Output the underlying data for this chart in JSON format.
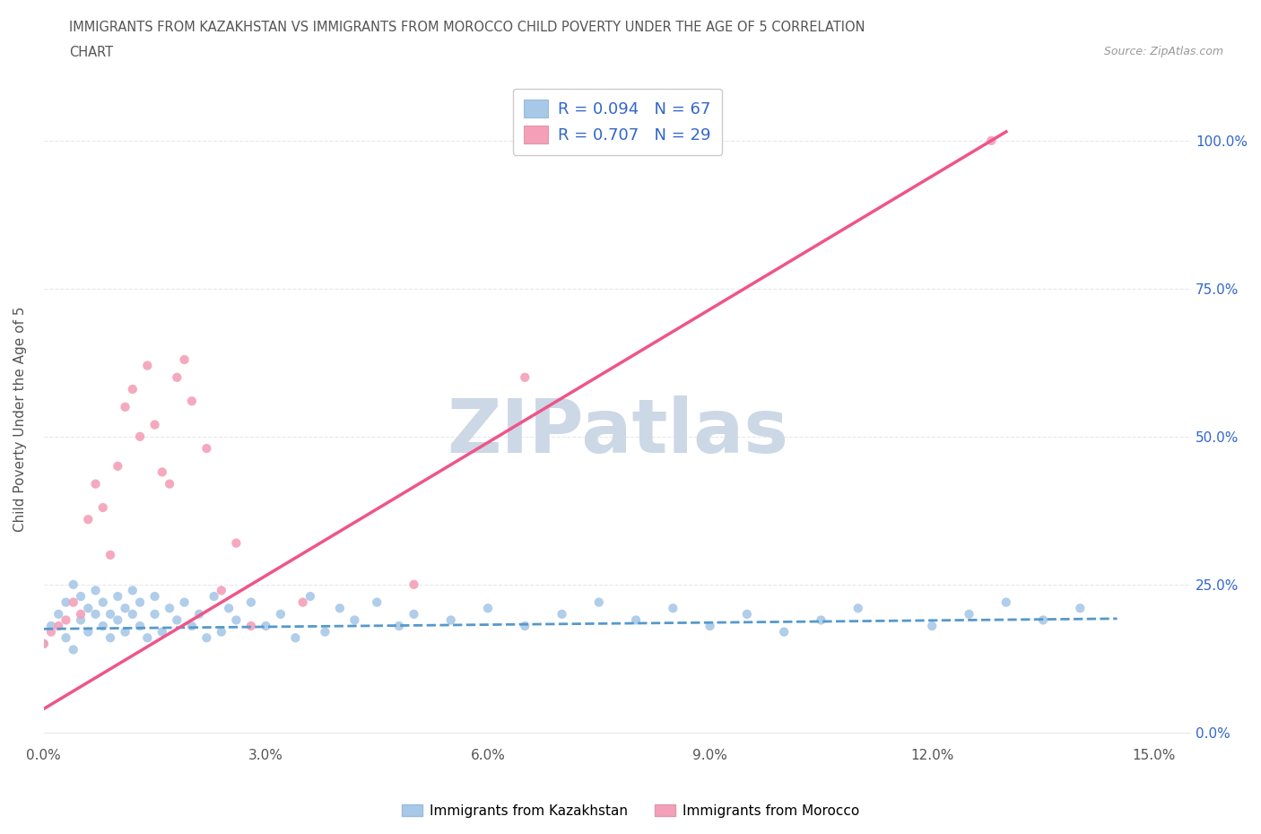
{
  "title_line1": "IMMIGRANTS FROM KAZAKHSTAN VS IMMIGRANTS FROM MOROCCO CHILD POVERTY UNDER THE AGE OF 5 CORRELATION",
  "title_line2": "CHART",
  "source_text": "Source: ZipAtlas.com",
  "ylabel": "Child Poverty Under the Age of 5",
  "xlim": [
    0.0,
    0.155
  ],
  "ylim": [
    -0.02,
    1.08
  ],
  "ytick_vals": [
    0.0,
    0.25,
    0.5,
    0.75,
    1.0
  ],
  "ytick_labels": [
    "0.0%",
    "25.0%",
    "50.0%",
    "75.0%",
    "100.0%"
  ],
  "xtick_vals": [
    0.0,
    0.03,
    0.06,
    0.09,
    0.12,
    0.15
  ],
  "xtick_labels": [
    "0.0%",
    "3.0%",
    "6.0%",
    "9.0%",
    "12.0%",
    "15.0%"
  ],
  "kazakhstan_R": "0.094",
  "kazakhstan_N": "67",
  "morocco_R": "0.707",
  "morocco_N": "29",
  "kazakhstan_color": "#a8c8e8",
  "morocco_color": "#f4a0b8",
  "kazakhstan_line_color": "#5599cc",
  "morocco_line_color": "#ee5588",
  "background_color": "#ffffff",
  "watermark_text": "ZIPatlas",
  "watermark_color": "#ccd8e5",
  "grid_color": "#e8e8e8",
  "legend_text_color": "#3366cc",
  "title_color": "#555555",
  "source_color": "#999999",
  "kaz_scatter_x": [
    0.0,
    0.001,
    0.002,
    0.003,
    0.003,
    0.004,
    0.004,
    0.005,
    0.005,
    0.006,
    0.006,
    0.007,
    0.007,
    0.008,
    0.008,
    0.009,
    0.009,
    0.01,
    0.01,
    0.011,
    0.011,
    0.012,
    0.012,
    0.013,
    0.013,
    0.014,
    0.015,
    0.015,
    0.016,
    0.017,
    0.018,
    0.019,
    0.02,
    0.021,
    0.022,
    0.023,
    0.024,
    0.025,
    0.026,
    0.028,
    0.03,
    0.032,
    0.034,
    0.036,
    0.038,
    0.04,
    0.042,
    0.045,
    0.048,
    0.05,
    0.055,
    0.06,
    0.065,
    0.07,
    0.075,
    0.08,
    0.085,
    0.09,
    0.095,
    0.1,
    0.105,
    0.11,
    0.12,
    0.125,
    0.13,
    0.135,
    0.14
  ],
  "kaz_scatter_y": [
    0.15,
    0.18,
    0.2,
    0.22,
    0.16,
    0.25,
    0.14,
    0.19,
    0.23,
    0.17,
    0.21,
    0.2,
    0.24,
    0.18,
    0.22,
    0.16,
    0.2,
    0.19,
    0.23,
    0.17,
    0.21,
    0.2,
    0.24,
    0.18,
    0.22,
    0.16,
    0.2,
    0.23,
    0.17,
    0.21,
    0.19,
    0.22,
    0.18,
    0.2,
    0.16,
    0.23,
    0.17,
    0.21,
    0.19,
    0.22,
    0.18,
    0.2,
    0.16,
    0.23,
    0.17,
    0.21,
    0.19,
    0.22,
    0.18,
    0.2,
    0.19,
    0.21,
    0.18,
    0.2,
    0.22,
    0.19,
    0.21,
    0.18,
    0.2,
    0.17,
    0.19,
    0.21,
    0.18,
    0.2,
    0.22,
    0.19,
    0.21
  ],
  "mar_scatter_x": [
    0.0,
    0.001,
    0.002,
    0.003,
    0.004,
    0.005,
    0.006,
    0.007,
    0.008,
    0.009,
    0.01,
    0.011,
    0.012,
    0.013,
    0.014,
    0.015,
    0.016,
    0.017,
    0.018,
    0.019,
    0.02,
    0.022,
    0.024,
    0.026,
    0.028,
    0.035,
    0.05,
    0.065,
    0.128
  ],
  "mar_scatter_y": [
    0.15,
    0.17,
    0.18,
    0.19,
    0.22,
    0.2,
    0.36,
    0.42,
    0.38,
    0.3,
    0.45,
    0.55,
    0.58,
    0.5,
    0.62,
    0.52,
    0.44,
    0.42,
    0.6,
    0.63,
    0.56,
    0.48,
    0.24,
    0.32,
    0.18,
    0.22,
    0.25,
    0.6,
    1.0
  ]
}
